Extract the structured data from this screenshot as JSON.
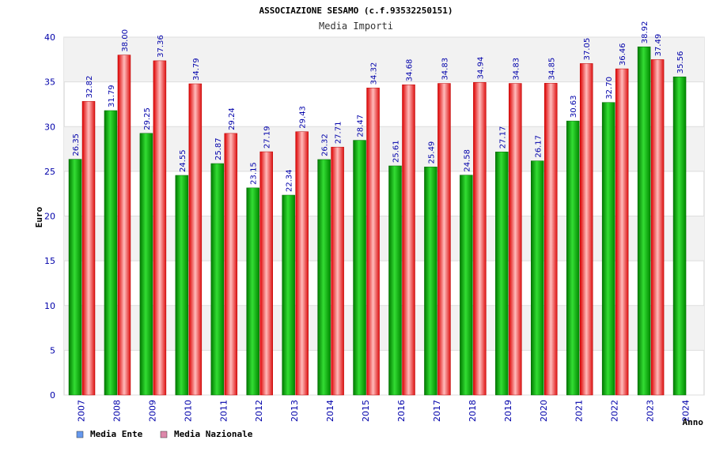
{
  "chart_data": {
    "type": "bar",
    "title": "ASSOCIAZIONE SESAMO (c.f.93532250151)",
    "subtitle": "Media Importi",
    "xlabel": "Anno",
    "ylabel": "Euro",
    "ylim": [
      0,
      40
    ],
    "yticks": [
      "0",
      "5",
      "10",
      "15",
      "20",
      "25",
      "30",
      "35",
      "40"
    ],
    "grid": true,
    "legend_position": "bottom-left",
    "categories": [
      "2007",
      "2008",
      "2009",
      "2010",
      "2011",
      "2012",
      "2013",
      "2014",
      "2015",
      "2016",
      "2017",
      "2018",
      "2019",
      "2020",
      "2021",
      "2022",
      "2023",
      "2024"
    ],
    "series": [
      {
        "name": "Media Ente",
        "color": "#00aa00",
        "legend_color": "#6699ee",
        "values": [
          26.35,
          31.79,
          29.25,
          24.55,
          25.87,
          23.15,
          22.34,
          26.32,
          28.47,
          25.61,
          25.49,
          24.58,
          27.17,
          26.17,
          30.63,
          32.7,
          38.92,
          35.56
        ],
        "labels": [
          "26.35",
          "31.79",
          "29.25",
          "24.55",
          "25.87",
          "23.15",
          "22.34",
          "26.32",
          "28.47",
          "25.61",
          "25.49",
          "24.58",
          "27.17",
          "26.17",
          "30.63",
          "32.70",
          "38.92",
          "35.56"
        ]
      },
      {
        "name": "Media Nazionale",
        "color": "#ee2222",
        "legend_color": "#dd88aa",
        "values": [
          32.82,
          38.0,
          37.36,
          34.79,
          29.24,
          27.19,
          29.43,
          27.71,
          34.32,
          34.68,
          34.83,
          34.94,
          34.83,
          34.85,
          37.05,
          36.46,
          37.49,
          null
        ],
        "labels": [
          "32.82",
          "38.00",
          "37.36",
          "34.79",
          "29.24",
          "27.19",
          "29.43",
          "27.71",
          "34.32",
          "34.68",
          "34.83",
          "34.94",
          "34.83",
          "34.85",
          "37.05",
          "36.46",
          "37.49",
          null
        ]
      }
    ]
  }
}
